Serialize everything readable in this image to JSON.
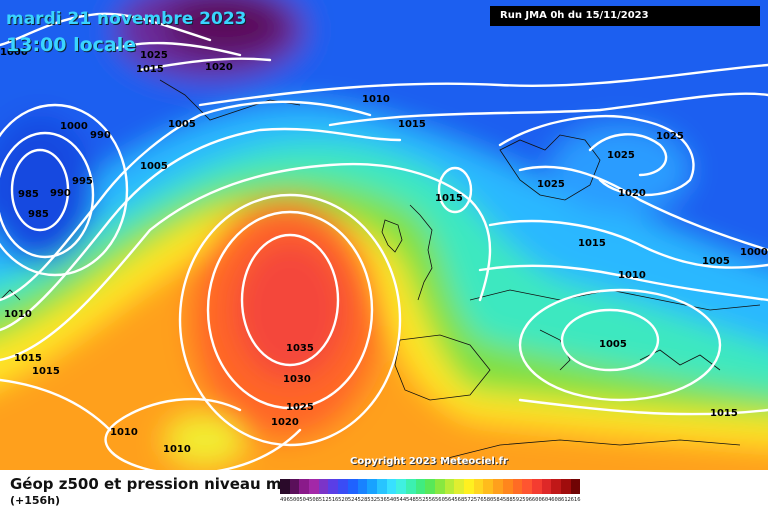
{
  "header": {
    "date": "mardi 21 novembre 2023",
    "time": "13:00 locale",
    "run": "Run JMA 0h du 15/11/2023"
  },
  "footer": {
    "title": "Géop z500 et pression niveau mer",
    "subtitle": "(+156h)",
    "copyright": "Copyright 2023 Meteociel.fr"
  },
  "scale": [
    {
      "v": "496",
      "c": "#2a0a2a"
    },
    {
      "v": "500",
      "c": "#5a0f5a"
    },
    {
      "v": "504",
      "c": "#8a1a8a"
    },
    {
      "v": "508",
      "c": "#a328a8"
    },
    {
      "v": "512",
      "c": "#7b34c8"
    },
    {
      "v": "516",
      "c": "#5a3ee6"
    },
    {
      "v": "520",
      "c": "#3a4cf5"
    },
    {
      "v": "524",
      "c": "#1f62ff"
    },
    {
      "v": "528",
      "c": "#1882ff"
    },
    {
      "v": "532",
      "c": "#18a2ff"
    },
    {
      "v": "536",
      "c": "#28c4ff"
    },
    {
      "v": "540",
      "c": "#38e0ff"
    },
    {
      "v": "544",
      "c": "#40f0e0"
    },
    {
      "v": "548",
      "c": "#3cf0b0"
    },
    {
      "v": "552",
      "c": "#40ec80"
    },
    {
      "v": "556",
      "c": "#58e858"
    },
    {
      "v": "560",
      "c": "#88e840"
    },
    {
      "v": "564",
      "c": "#b8ec38"
    },
    {
      "v": "568",
      "c": "#e0ee30"
    },
    {
      "v": "572",
      "c": "#fff020"
    },
    {
      "v": "576",
      "c": "#ffd620"
    },
    {
      "v": "580",
      "c": "#ffbc1c"
    },
    {
      "v": "584",
      "c": "#ffa01c"
    },
    {
      "v": "588",
      "c": "#ff861c"
    },
    {
      "v": "592",
      "c": "#ff6c24"
    },
    {
      "v": "596",
      "c": "#ff5530"
    },
    {
      "v": "600",
      "c": "#f43c30"
    },
    {
      "v": "604",
      "c": "#de2828"
    },
    {
      "v": "608",
      "c": "#c01818"
    },
    {
      "v": "612",
      "c": "#a00c0c"
    },
    {
      "v": "616",
      "c": "#700404"
    }
  ],
  "isobars": [
    "1000",
    "990",
    "995",
    "985",
    "990",
    "985",
    "1000",
    "1025",
    "1015",
    "1020",
    "1005",
    "1005",
    "1010",
    "1015",
    "1015",
    "1010",
    "1015",
    "1015",
    "1035",
    "1030",
    "1025",
    "1020",
    "1010",
    "1010",
    "1025",
    "1025",
    "1025",
    "1020",
    "1015",
    "1010",
    "1005",
    "1000",
    "1005",
    "1015"
  ]
}
